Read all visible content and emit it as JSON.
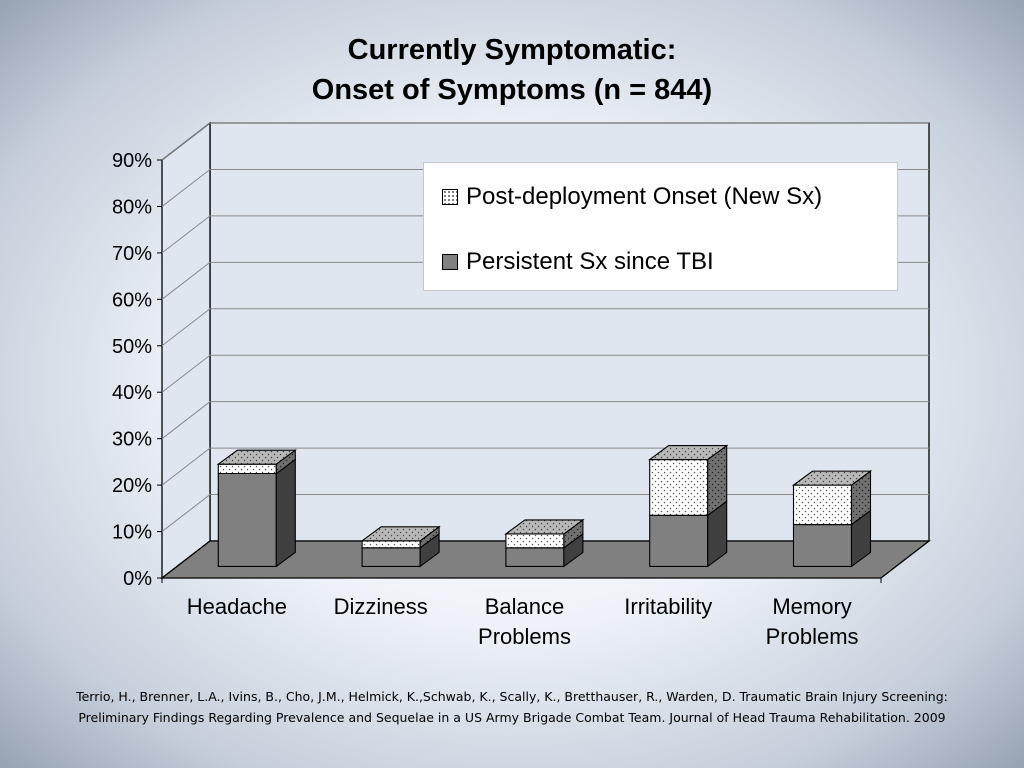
{
  "title_lines": [
    "Currently Symptomatic:",
    "Onset of Symptoms (n = 844)"
  ],
  "chart_data": {
    "type": "bar",
    "stacked": true,
    "three_d": true,
    "categories": [
      [
        "Headache"
      ],
      [
        "Dizziness"
      ],
      [
        "Balance",
        "Problems"
      ],
      [
        "Irritability"
      ],
      [
        "Memory",
        "Problems"
      ]
    ],
    "series": [
      {
        "name": "Persistent Sx since TBI",
        "values": [
          20,
          4,
          4,
          11,
          9
        ],
        "color": "#808080",
        "pattern": "solid"
      },
      {
        "name": "Post-deployment Onset (New Sx)",
        "values": [
          2,
          1.5,
          3,
          12,
          8.5
        ],
        "color": "#ffffff",
        "pattern": "dots"
      }
    ],
    "ylim": [
      0,
      90
    ],
    "yticks": [
      "0%",
      "10%",
      "20%",
      "30%",
      "40%",
      "50%",
      "60%",
      "70%",
      "80%",
      "90%"
    ],
    "grid": true,
    "legend_position": "top-right",
    "legend_order": [
      "Post-deployment Onset (New Sx)",
      "Persistent Sx since TBI"
    ]
  },
  "citation_lines": [
    "Terrio, H., Brenner, L.A., Ivins, B., Cho, J.M., Helmick, K.,Schwab, K., Scally, K., Bretthauser, R., Warden, D. Traumatic Brain Injury Screening:",
    "Preliminary Findings Regarding Prevalence and Sequelae in a US Army Brigade Combat Team. Journal of Head Trauma Rehabilitation. 2009"
  ]
}
